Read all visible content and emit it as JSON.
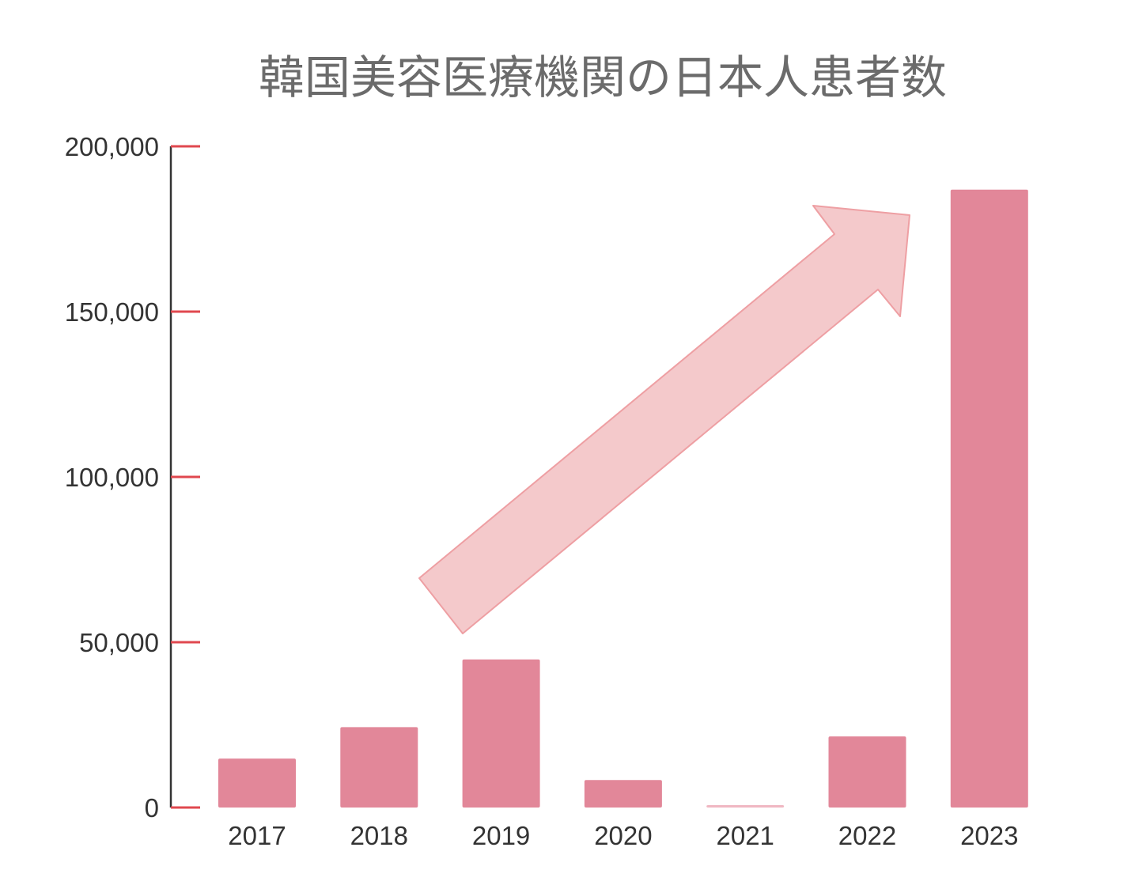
{
  "chart_data": {
    "type": "bar",
    "title": "韓国美容医療機関の日本人患者数",
    "xlabel": "",
    "ylabel": "",
    "categories": [
      "2017",
      "2018",
      "2019",
      "2020",
      "2021",
      "2022",
      "2023"
    ],
    "values": [
      14800,
      24300,
      44800,
      8300,
      700,
      21500,
      186900
    ],
    "ylim": [
      0,
      200000
    ],
    "yticks": [
      0,
      50000,
      100000,
      150000,
      200000
    ],
    "ytick_labels": [
      "0",
      "50,000",
      "100,000",
      "150,000",
      "200,000"
    ],
    "grid": false,
    "legend": "none",
    "annotation": "upward-trend-arrow",
    "colors": {
      "bar": "#e28799",
      "bar_faint": "#f0b7c2",
      "axis": "#333333",
      "tick_mark": "#e0484f",
      "arrow_fill": "#f4c9cb",
      "arrow_stroke": "#ee9fa3",
      "title": "#6b6b6b"
    }
  }
}
